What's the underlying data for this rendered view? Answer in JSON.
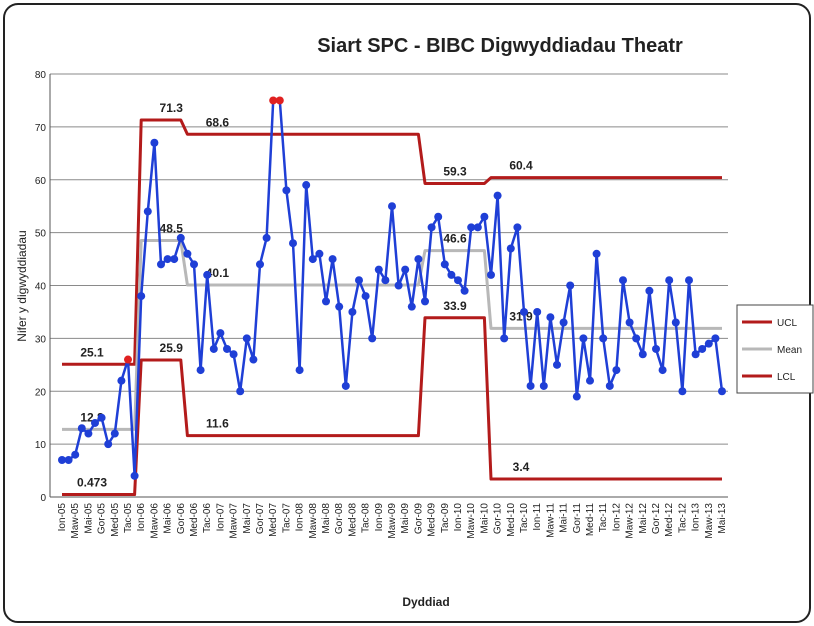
{
  "chart_data": {
    "type": "line",
    "title": "Siart SPC - BIBC Digwyddiadau Theatr",
    "xlabel": "Dyddiad",
    "ylabel": "Nifer y digwyddiadau",
    "ylim": [
      0,
      80
    ],
    "yticks": [
      0,
      10,
      20,
      30,
      40,
      50,
      60,
      70,
      80
    ],
    "grid": true,
    "legend": "right",
    "color": "#1f3fd6",
    "out_of_control_color": "#e02020",
    "categories": [
      "Ion-05",
      null,
      "Maw-05",
      null,
      "Mai-05",
      null,
      "Gor-05",
      null,
      "Med-05",
      null,
      "Tac-05",
      null,
      "Ion-06",
      null,
      "Maw-06",
      null,
      "Mai-06",
      null,
      "Gor-06",
      null,
      "Med-06",
      null,
      "Tac-06",
      null,
      "Ion-07",
      null,
      "Maw-07",
      null,
      "Mai-07",
      null,
      "Gor-07",
      null,
      "Med-07",
      null,
      "Tac-07",
      null,
      "Ion-08",
      null,
      "Maw-08",
      null,
      "Mai-08",
      null,
      "Gor-08",
      null,
      "Med-08",
      null,
      "Tac-08",
      null,
      "Ion-09",
      null,
      "Maw-09",
      null,
      "Mai-09",
      null,
      "Gor-09",
      null,
      "Med-09",
      null,
      "Tac-09",
      null,
      "Ion-10",
      null,
      "Maw-10",
      null,
      "Mai-10",
      null,
      "Gor-10",
      null,
      "Med-10",
      null,
      "Tac-10",
      null,
      "Ion-11",
      null,
      "Maw-11",
      null,
      "Mai-11",
      null,
      "Gor-11",
      null,
      "Med-11",
      null,
      "Tac-11",
      null,
      "Ion-12",
      null,
      "Maw-12",
      null,
      "Mai-12",
      null,
      "Gor-12",
      null,
      "Med-12",
      null,
      "Tac-12",
      null,
      "Ion-13",
      null,
      "Maw-13",
      null,
      "Mai-13"
    ],
    "values": [
      7,
      7,
      8,
      13,
      12,
      14,
      15,
      10,
      12,
      22,
      26,
      4,
      38,
      54,
      67,
      44,
      45,
      45,
      49,
      46,
      44,
      24,
      42,
      28,
      31,
      28,
      27,
      20,
      30,
      26,
      44,
      49,
      75,
      75,
      58,
      48,
      24,
      59,
      45,
      46,
      37,
      45,
      36,
      21,
      35,
      41,
      38,
      30,
      43,
      41,
      55,
      40,
      43,
      36,
      45,
      37,
      51,
      53,
      44,
      42,
      41,
      39,
      51,
      51,
      53,
      42,
      57,
      30,
      47,
      51,
      35,
      21,
      35,
      21,
      34,
      25,
      33,
      40,
      19,
      30,
      22,
      46,
      30,
      21,
      24,
      41,
      33,
      30,
      27,
      39,
      28,
      24,
      41,
      33,
      20,
      41,
      27,
      28,
      29,
      30,
      20
    ],
    "series": [
      {
        "name": "UCL",
        "color": "#b31b1b",
        "values": [
          25.1,
          25.1,
          25.1,
          25.1,
          25.1,
          25.1,
          25.1,
          25.1,
          25.1,
          25.1,
          25.1,
          25.1,
          71.3,
          71.3,
          71.3,
          71.3,
          71.3,
          71.3,
          71.3,
          68.6,
          68.6,
          68.6,
          68.6,
          68.6,
          68.6,
          68.6,
          68.6,
          68.6,
          68.6,
          68.6,
          68.6,
          68.6,
          68.6,
          68.6,
          68.6,
          68.6,
          68.6,
          68.6,
          68.6,
          68.6,
          68.6,
          68.6,
          68.6,
          68.6,
          68.6,
          68.6,
          68.6,
          68.6,
          68.6,
          68.6,
          68.6,
          68.6,
          68.6,
          68.6,
          68.6,
          59.3,
          59.3,
          59.3,
          59.3,
          59.3,
          59.3,
          59.3,
          59.3,
          59.3,
          59.3,
          60.4,
          60.4,
          60.4,
          60.4,
          60.4,
          60.4,
          60.4,
          60.4,
          60.4,
          60.4,
          60.4,
          60.4,
          60.4,
          60.4,
          60.4,
          60.4,
          60.4,
          60.4,
          60.4,
          60.4,
          60.4,
          60.4,
          60.4,
          60.4,
          60.4,
          60.4,
          60.4,
          60.4,
          60.4,
          60.4,
          60.4,
          60.4,
          60.4,
          60.4,
          60.4,
          60.4
        ]
      },
      {
        "name": "Mean",
        "color": "#b8b8b8",
        "values": [
          12.8,
          12.8,
          12.8,
          12.8,
          12.8,
          12.8,
          12.8,
          12.8,
          12.8,
          12.8,
          12.8,
          12.8,
          48.5,
          48.5,
          48.5,
          48.5,
          48.5,
          48.5,
          48.5,
          40.1,
          40.1,
          40.1,
          40.1,
          40.1,
          40.1,
          40.1,
          40.1,
          40.1,
          40.1,
          40.1,
          40.1,
          40.1,
          40.1,
          40.1,
          40.1,
          40.1,
          40.1,
          40.1,
          40.1,
          40.1,
          40.1,
          40.1,
          40.1,
          40.1,
          40.1,
          40.1,
          40.1,
          40.1,
          40.1,
          40.1,
          40.1,
          40.1,
          40.1,
          40.1,
          40.1,
          46.6,
          46.6,
          46.6,
          46.6,
          46.6,
          46.6,
          46.6,
          46.6,
          46.6,
          46.6,
          31.9,
          31.9,
          31.9,
          31.9,
          31.9,
          31.9,
          31.9,
          31.9,
          31.9,
          31.9,
          31.9,
          31.9,
          31.9,
          31.9,
          31.9,
          31.9,
          31.9,
          31.9,
          31.9,
          31.9,
          31.9,
          31.9,
          31.9,
          31.9,
          31.9,
          31.9,
          31.9,
          31.9,
          31.9,
          31.9,
          31.9,
          31.9,
          31.9,
          31.9,
          31.9,
          31.9
        ]
      },
      {
        "name": "LCL",
        "color": "#b31b1b",
        "values": [
          0.473,
          0.473,
          0.473,
          0.473,
          0.473,
          0.473,
          0.473,
          0.473,
          0.473,
          0.473,
          0.473,
          0.473,
          25.9,
          25.9,
          25.9,
          25.9,
          25.9,
          25.9,
          25.9,
          11.6,
          11.6,
          11.6,
          11.6,
          11.6,
          11.6,
          11.6,
          11.6,
          11.6,
          11.6,
          11.6,
          11.6,
          11.6,
          11.6,
          11.6,
          11.6,
          11.6,
          11.6,
          11.6,
          11.6,
          11.6,
          11.6,
          11.6,
          11.6,
          11.6,
          11.6,
          11.6,
          11.6,
          11.6,
          11.6,
          11.6,
          11.6,
          11.6,
          11.6,
          11.6,
          11.6,
          33.9,
          33.9,
          33.9,
          33.9,
          33.9,
          33.9,
          33.9,
          33.9,
          33.9,
          33.9,
          3.4,
          3.4,
          3.4,
          3.4,
          3.4,
          3.4,
          3.4,
          3.4,
          3.4,
          3.4,
          3.4,
          3.4,
          3.4,
          3.4,
          3.4,
          3.4,
          3.4,
          3.4,
          3.4,
          3.4,
          3.4,
          3.4,
          3.4,
          3.4,
          3.4,
          3.4,
          3.4,
          3.4,
          3.4,
          3.4,
          3.4,
          3.4,
          3.4,
          3.4,
          3.4,
          3.4
        ]
      }
    ]
  }
}
